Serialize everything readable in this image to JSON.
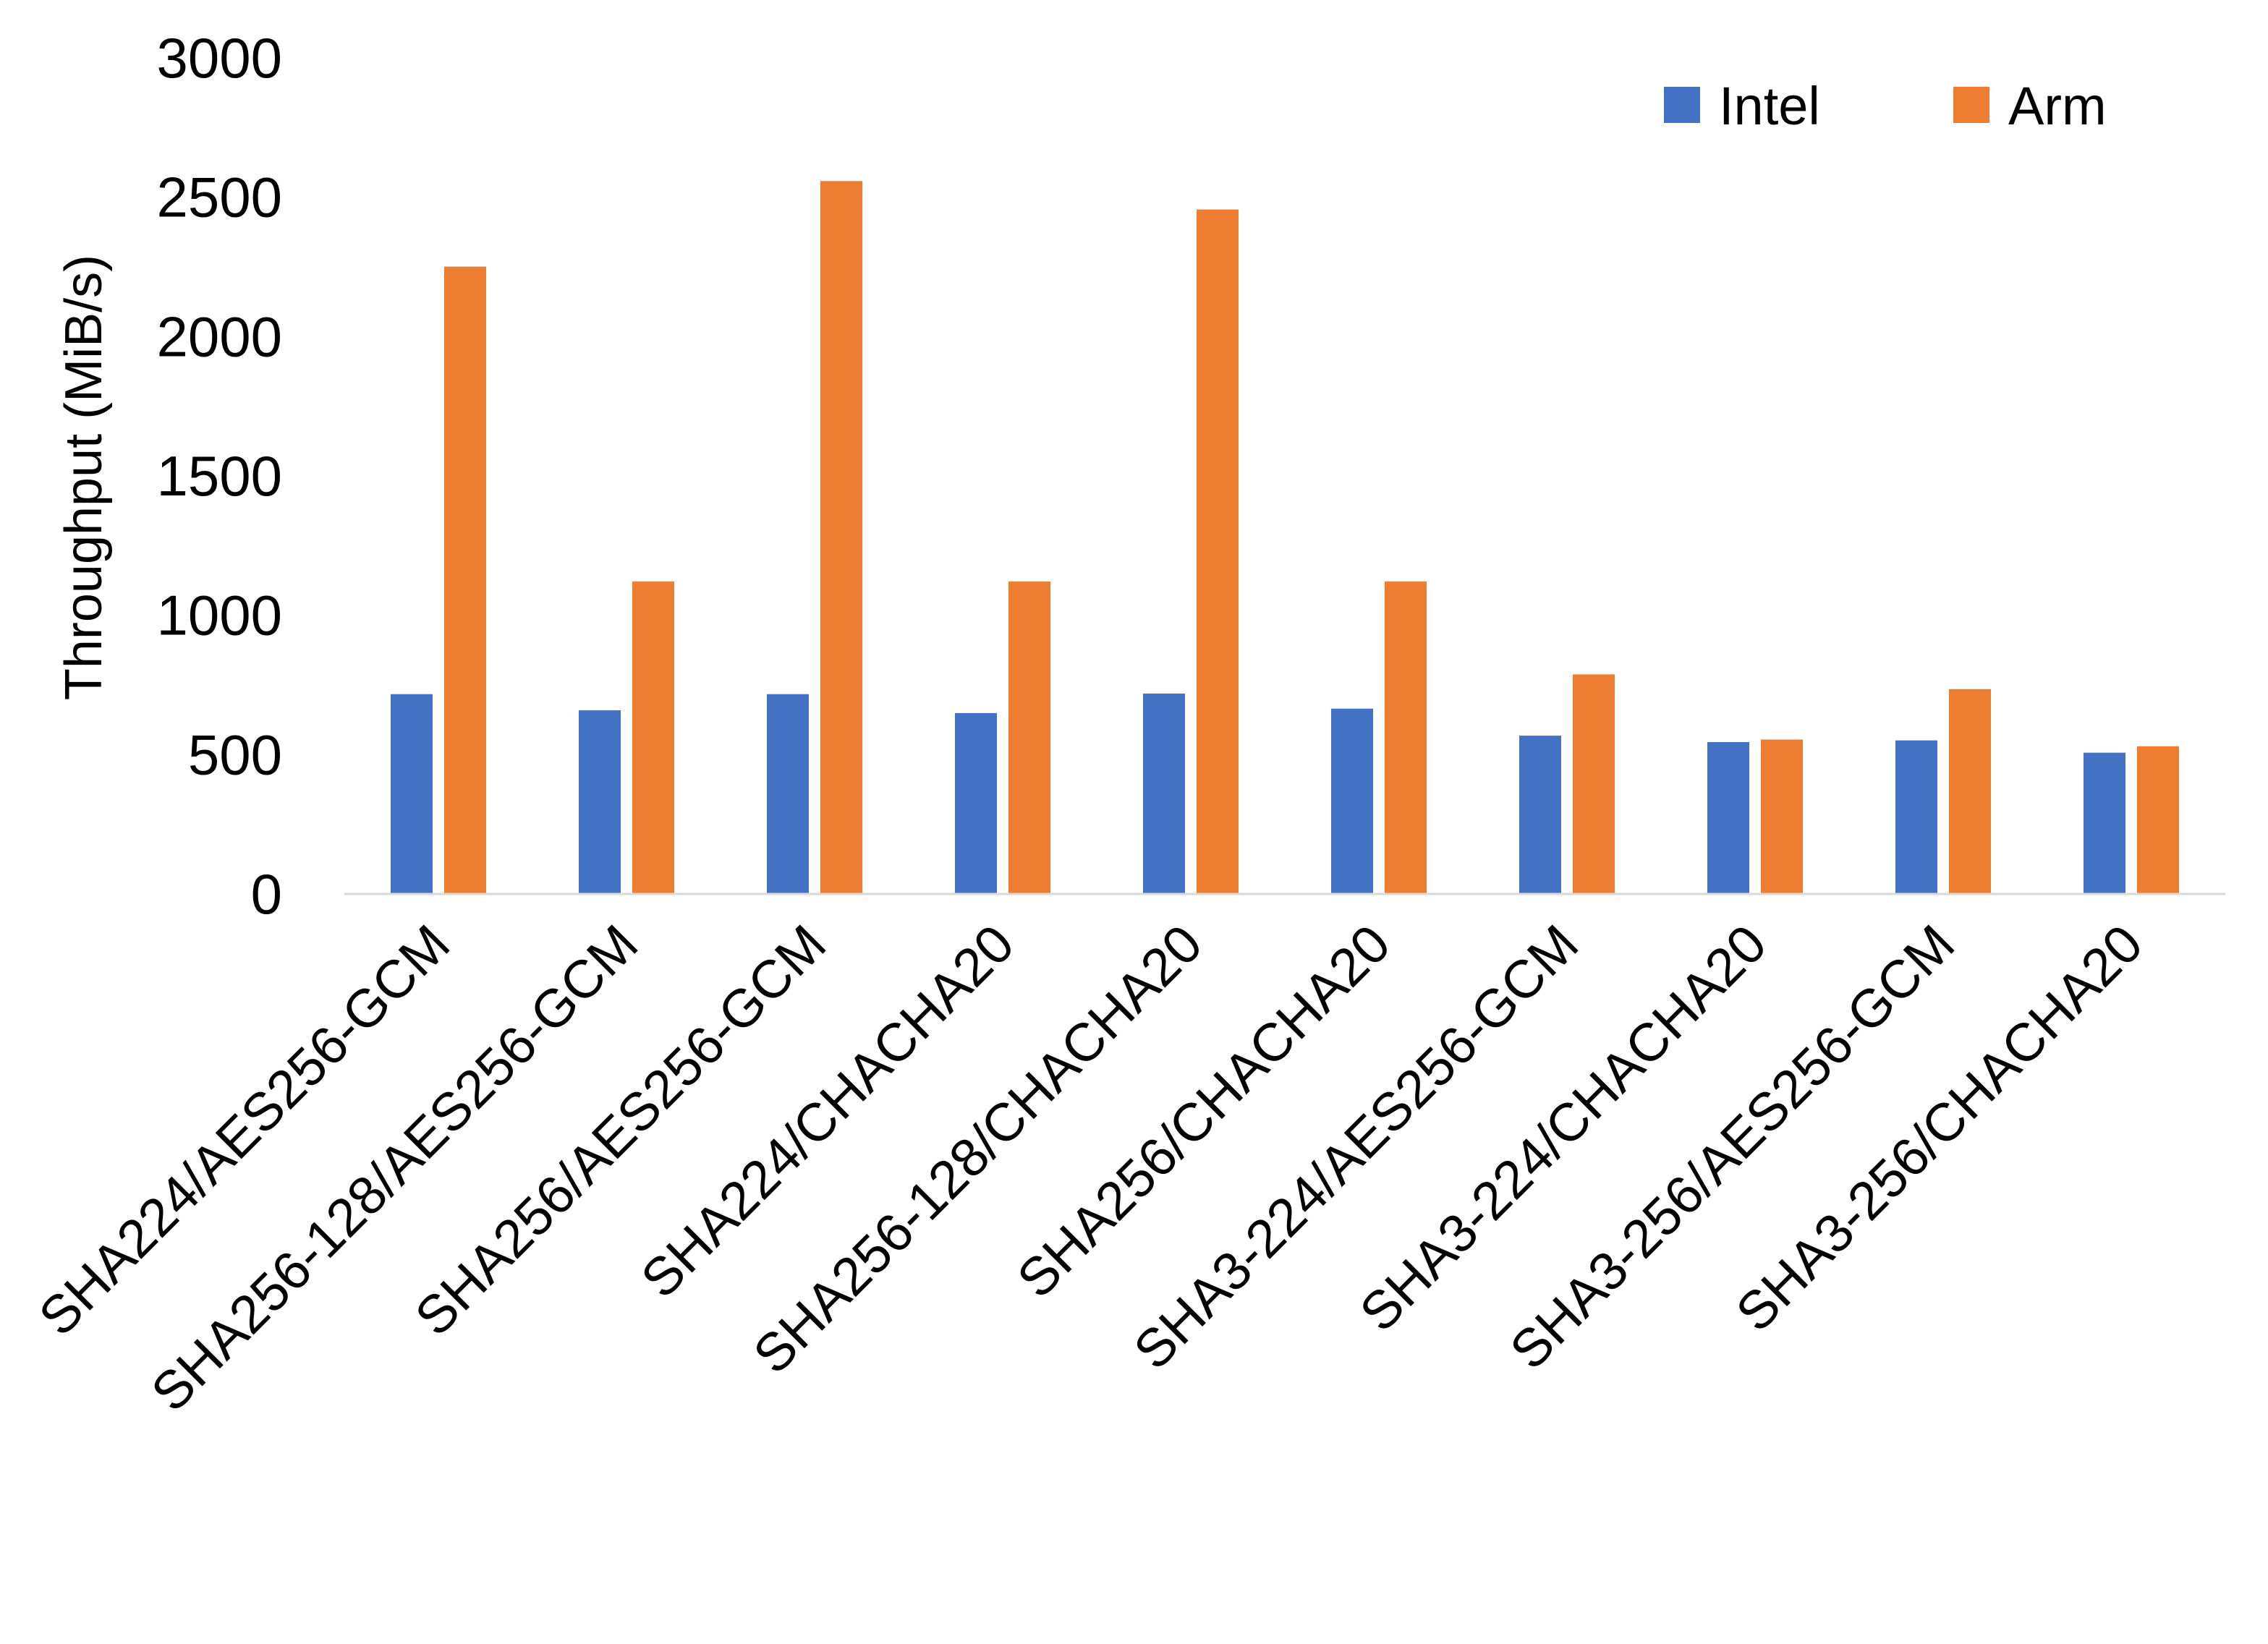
{
  "chart_data": {
    "type": "bar",
    "title": "",
    "xlabel": "",
    "ylabel": "Throughput (MiB/s)",
    "ylim": [
      0,
      3000
    ],
    "yticks": [
      "0",
      "500",
      "1000",
      "1500",
      "2000",
      "2500",
      "3000"
    ],
    "grid": false,
    "legend_position": "top-right",
    "categories": [
      "SHA224/AES256-GCM",
      "SHA256-128/AES256-GCM",
      "SHA256/AES256-GCM",
      "SHA224/CHACHA20",
      "SHA256-128/CHACHA20",
      "SHA256/CHACHA20",
      "SHA3-224/AES256-GCM",
      "SHA3-224/CHACHA20",
      "SHA3-256/AES256-GCM",
      "SHA3-256/CHACHA20"
    ],
    "series": [
      {
        "name": "Intel",
        "color": "#4472C4",
        "values": [
          717,
          659,
          717,
          649,
          719,
          665,
          568,
          545,
          551,
          507
        ]
      },
      {
        "name": "Arm",
        "color": "#ED7D31",
        "values": [
          2251,
          1121,
          2558,
          1121,
          2456,
          1121,
          788,
          554,
          735,
          530
        ]
      }
    ]
  }
}
